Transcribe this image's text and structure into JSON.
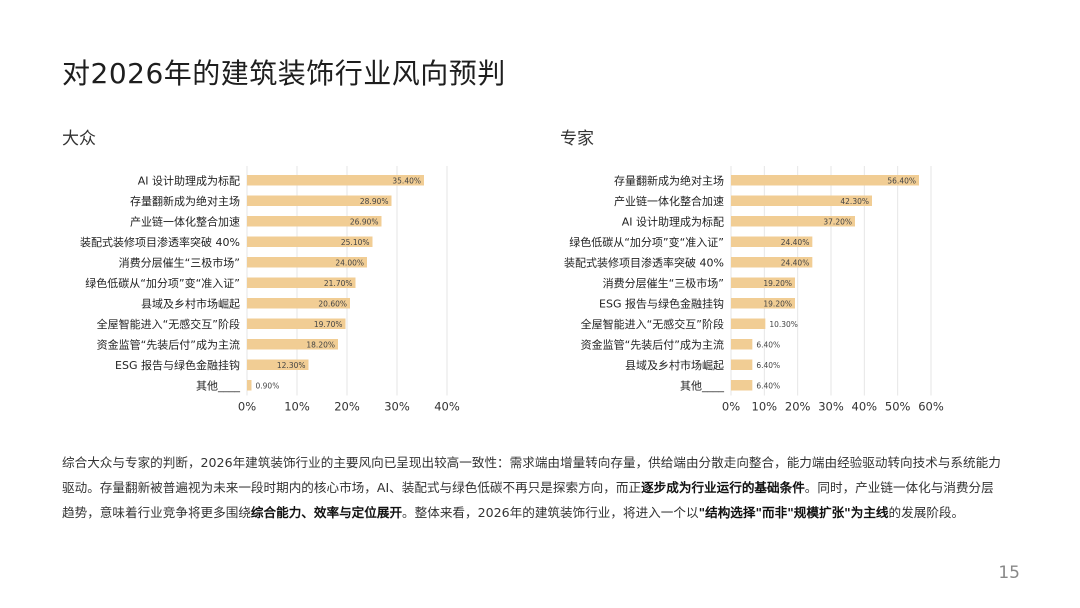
{
  "page": {
    "title": "对2026年的建筑装饰行业风向预判",
    "page_number": "15",
    "summary": [
      {
        "text": "综合大众与专家的判断，2026年建筑装饰行业的主要风向已呈现出较高一致性：需求端由增量转向存量，供给端由分散走向整合，能力端由经验驱动转向技术与系统能力驱动。存量翻新被普遍视为未来一段时期内的核心市场，AI、装配式与绿色低碳不再只是探索方向，而正",
        "bold": false
      },
      {
        "text": "逐步成为行业运行的基础条件",
        "bold": true
      },
      {
        "text": "。同时，产业链一体化与消费分层趋势，意味着行业竞争将更多围绕",
        "bold": false
      },
      {
        "text": "综合能力、效率与定位展开",
        "bold": true
      },
      {
        "text": "。整体来看，2026年的建筑装饰行业，将进入一个以",
        "bold": false
      },
      {
        "text": "\"结构选择\"而非\"规模扩张\"为主线",
        "bold": true
      },
      {
        "text": "的发展阶段。",
        "bold": false
      }
    ]
  },
  "chart_data": [
    {
      "type": "bar",
      "orientation": "horizontal",
      "title": "大众",
      "categories": [
        "AI 设计助理成为标配",
        "存量翻新成为绝对主场",
        "产业链一体化整合加速",
        "装配式装修项目渗透率突破 40%",
        "消费分层催生“三极市场”",
        "绿色低碳从“加分项”变“准入证”",
        "县域及乡村市场崛起",
        "全屋智能进入“无感交互”阶段",
        "资金监管“先装后付”成为主流",
        "ESG 报告与绿色金融挂钩",
        "其他____"
      ],
      "values": [
        35.4,
        28.9,
        26.9,
        25.1,
        24.0,
        21.7,
        20.6,
        19.7,
        18.2,
        12.3,
        0.9
      ],
      "value_labels": [
        "35.40%",
        "28.90%",
        "26.90%",
        "25.10%",
        "24.00%",
        "21.70%",
        "20.60%",
        "19.70%",
        "18.20%",
        "12.30%",
        "0.90%"
      ],
      "xlim": [
        0,
        40
      ],
      "xticks": [
        "0%",
        "10%",
        "20%",
        "30%",
        "40%"
      ],
      "grid": true,
      "bar_color": "#f1cd94"
    },
    {
      "type": "bar",
      "orientation": "horizontal",
      "title": "专家",
      "categories": [
        "存量翻新成为绝对主场",
        "产业链一体化整合加速",
        "AI 设计助理成为标配",
        "绿色低碳从“加分项”变“准入证”",
        "装配式装修项目渗透率突破 40%",
        "消费分层催生“三极市场”",
        "ESG 报告与绿色金融挂钩",
        "全屋智能进入“无感交互”阶段",
        "资金监管“先装后付”成为主流",
        "县域及乡村市场崛起",
        "其他____"
      ],
      "values": [
        56.4,
        42.3,
        37.2,
        24.4,
        24.4,
        19.2,
        19.2,
        10.3,
        6.4,
        6.4,
        6.4
      ],
      "value_labels": [
        "56.40%",
        "42.30%",
        "37.20%",
        "24.40%",
        "24.40%",
        "19.20%",
        "19.20%",
        "10.30%",
        "6.40%",
        "6.40%",
        "6.40%"
      ],
      "xlim": [
        0,
        60
      ],
      "xticks": [
        "0%",
        "10%",
        "20%",
        "30%",
        "40%",
        "50%",
        "60%"
      ],
      "grid": true,
      "bar_color": "#f1cd94"
    }
  ]
}
